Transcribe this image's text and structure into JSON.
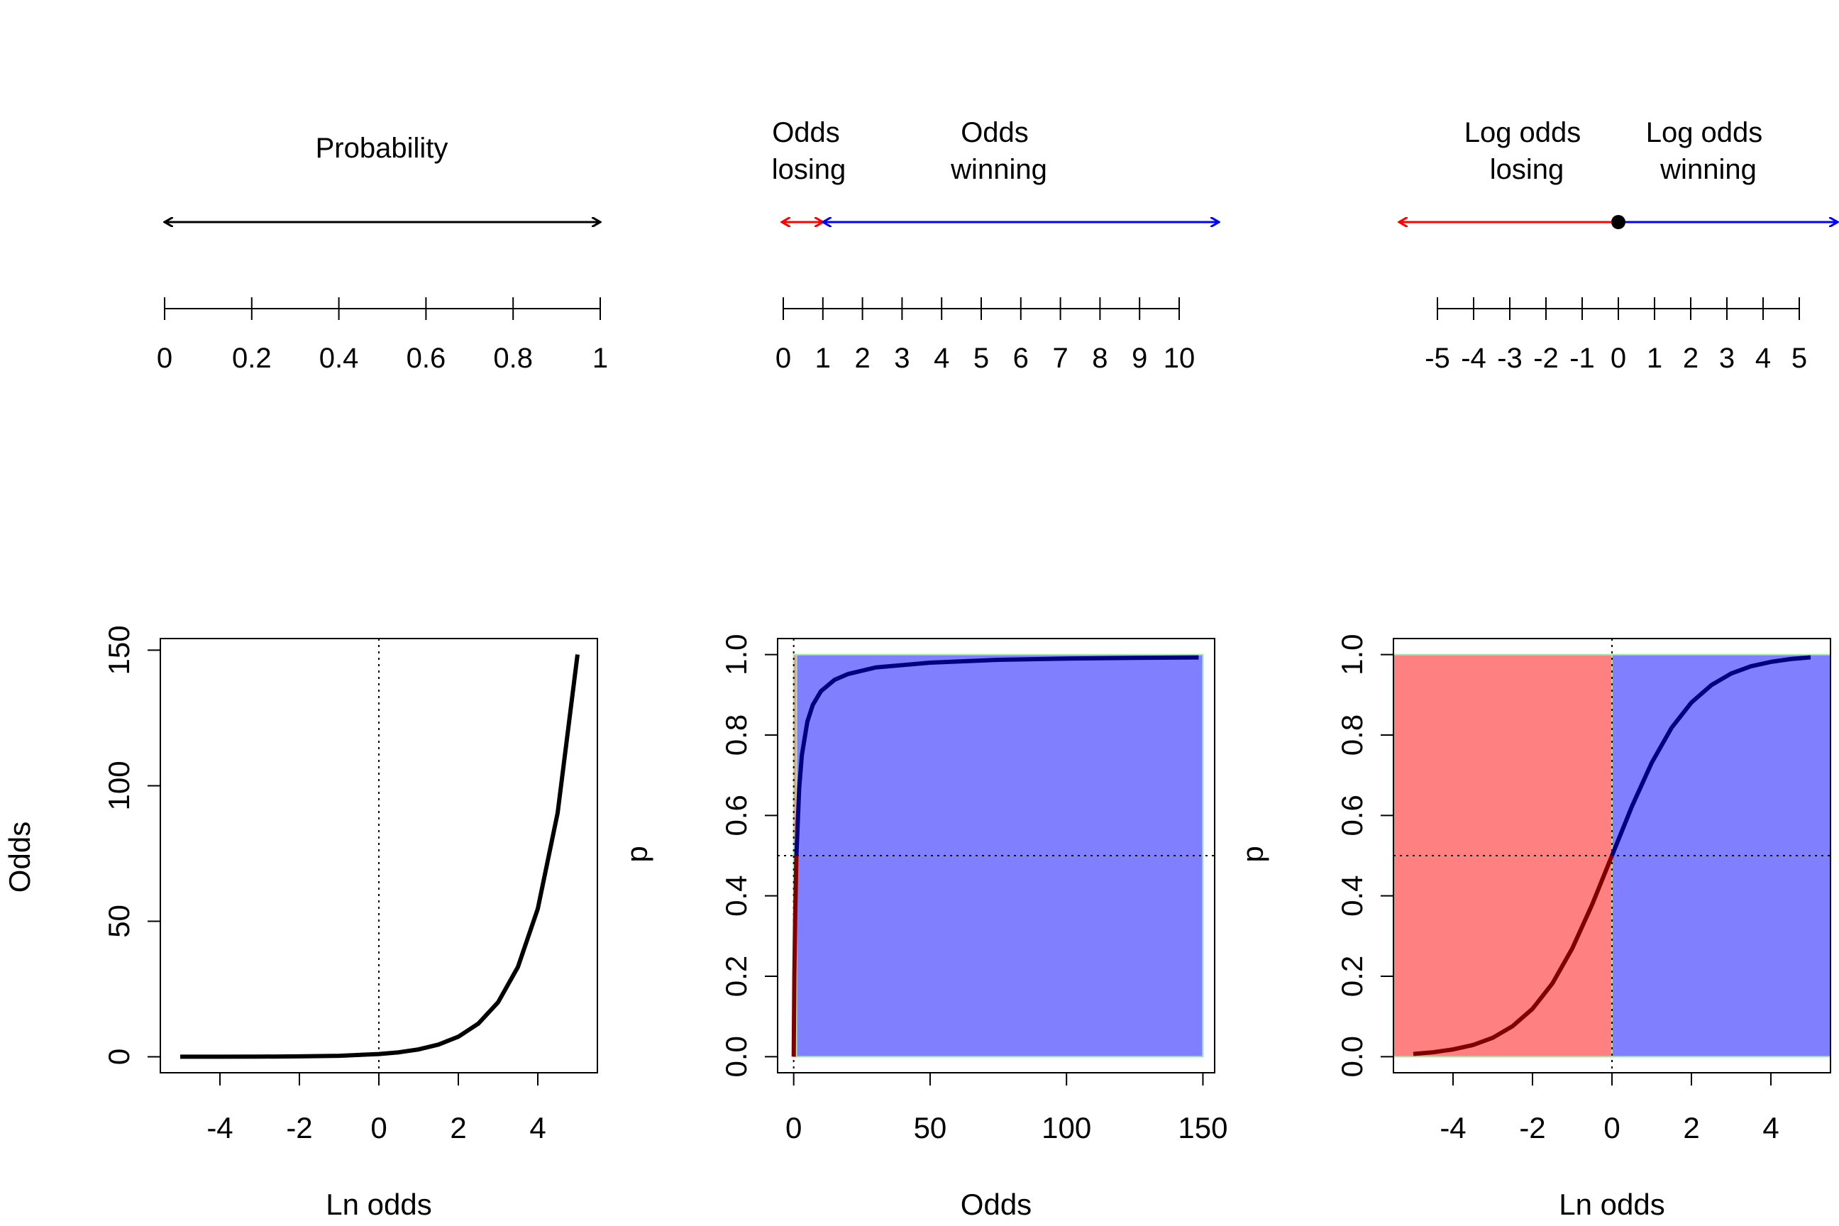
{
  "chart_data": [
    {
      "type": "number-line",
      "title": "Probability",
      "ticks": [
        0,
        0.2,
        0.4,
        0.6,
        0.8,
        1
      ],
      "tick_labels": [
        "0",
        "0.2",
        "0.4",
        "0.6",
        "0.8",
        "1"
      ],
      "range": [
        0,
        1
      ],
      "arrows": [
        {
          "from": 0,
          "to": 1,
          "color": "#000000",
          "double_headed": true
        }
      ]
    },
    {
      "type": "number-line",
      "regions": [
        {
          "label_lines": [
            "Odds",
            "losing"
          ],
          "from": 0,
          "to": 1,
          "color": "#ff0000"
        },
        {
          "label_lines": [
            "Odds",
            "winning"
          ],
          "from": 1,
          "to": 10,
          "color": "#0000ff"
        }
      ],
      "ticks": [
        0,
        1,
        2,
        3,
        4,
        5,
        6,
        7,
        8,
        9,
        10
      ],
      "tick_labels": [
        "0",
        "1",
        "2",
        "3",
        "4",
        "5",
        "6",
        "7",
        "8",
        "9",
        "10"
      ],
      "range": [
        0,
        10
      ]
    },
    {
      "type": "number-line",
      "regions": [
        {
          "label_lines": [
            "Log odds",
            "losing"
          ],
          "from": 0,
          "to": -5,
          "color": "#ff0000"
        },
        {
          "label_lines": [
            "Log odds",
            "winning"
          ],
          "from": 0,
          "to": 5,
          "color": "#0000ff"
        }
      ],
      "point": {
        "x": 0,
        "color": "#000000"
      },
      "ticks": [
        -5,
        -4,
        -3,
        -2,
        -1,
        0,
        1,
        2,
        3,
        4,
        5
      ],
      "tick_labels": [
        "-5",
        "-4",
        "-3",
        "-2",
        "-1",
        "0",
        "1",
        "2",
        "3",
        "4",
        "5"
      ],
      "range": [
        -5,
        5
      ]
    },
    {
      "type": "line",
      "function": "odds = exp(ln odds)",
      "x": [
        -5,
        -4,
        -3,
        -2,
        -1,
        0,
        0.5,
        1,
        1.5,
        2,
        2.5,
        3,
        3.5,
        4,
        4.5,
        5
      ],
      "y": [
        0.007,
        0.018,
        0.05,
        0.135,
        0.368,
        1,
        1.65,
        2.72,
        4.48,
        7.39,
        12.18,
        20.09,
        33.12,
        54.6,
        90.02,
        148.41
      ],
      "xlabel": "Ln odds",
      "ylabel": "Odds",
      "xlim": [
        -5.5,
        5.5
      ],
      "ylim": [
        -5.9,
        154.3
      ],
      "xticks": [
        -4,
        -2,
        0,
        2,
        4
      ],
      "yticks": [
        0,
        50,
        100,
        150
      ],
      "vline": 0,
      "line_color": "#000000",
      "grid": false
    },
    {
      "type": "line",
      "function": "p = odds / (1 + odds)",
      "x": [
        0,
        0.1,
        0.25,
        0.5,
        1,
        2,
        3,
        5,
        7,
        10,
        15,
        20,
        30,
        50,
        75,
        100,
        125,
        148.41
      ],
      "y": [
        0,
        0.091,
        0.2,
        0.333,
        0.5,
        0.667,
        0.75,
        0.833,
        0.875,
        0.909,
        0.9375,
        0.952,
        0.968,
        0.98,
        0.987,
        0.99,
        0.992,
        0.993
      ],
      "xlabel": "Odds",
      "ylabel": "p",
      "xlim": [
        -5.9,
        154.3
      ],
      "ylim": [
        -0.04,
        1.04
      ],
      "xticks": [
        0,
        50,
        100,
        150
      ],
      "yticks": [
        0,
        0.2,
        0.4,
        0.6,
        0.8,
        1.0
      ],
      "ytick_labels": [
        "0.0",
        "0.2",
        "0.4",
        "0.6",
        "0.8",
        "1.0"
      ],
      "hline": 0.5,
      "vline": 0,
      "regions": [
        {
          "from": 0,
          "to": 1,
          "color": "#ff8080"
        },
        {
          "from": 1,
          "to": 150,
          "color": "#8080ff"
        }
      ],
      "region_border_color": "#a8e8b0",
      "line_color_losing": "#800000",
      "line_color_winning": "#000080",
      "grid": false
    },
    {
      "type": "line",
      "function": "p = 1 / (1 + exp(-ln odds))",
      "x": [
        -5,
        -4.5,
        -4,
        -3.5,
        -3,
        -2.5,
        -2,
        -1.5,
        -1,
        -0.5,
        0,
        0.5,
        1,
        1.5,
        2,
        2.5,
        3,
        3.5,
        4,
        4.5,
        5
      ],
      "y": [
        0.0067,
        0.011,
        0.018,
        0.029,
        0.047,
        0.076,
        0.119,
        0.182,
        0.269,
        0.378,
        0.5,
        0.622,
        0.731,
        0.818,
        0.881,
        0.924,
        0.953,
        0.971,
        0.982,
        0.989,
        0.9933
      ],
      "xlabel": "Ln odds",
      "ylabel": "p",
      "xlim": [
        -5.5,
        5.5
      ],
      "ylim": [
        -0.04,
        1.04
      ],
      "xticks": [
        -4,
        -2,
        0,
        2,
        4
      ],
      "yticks": [
        0,
        0.2,
        0.4,
        0.6,
        0.8,
        1.0
      ],
      "ytick_labels": [
        "0.0",
        "0.2",
        "0.4",
        "0.6",
        "0.8",
        "1.0"
      ],
      "hline": 0.5,
      "vline": 0,
      "regions": [
        {
          "from": -5.5,
          "to": 0,
          "color": "#ff8080"
        },
        {
          "from": 0,
          "to": 5.5,
          "color": "#8080ff"
        }
      ],
      "region_border_color": "#a8e8b0",
      "line_color_losing": "#800000",
      "line_color_winning": "#000080",
      "grid": false
    }
  ]
}
